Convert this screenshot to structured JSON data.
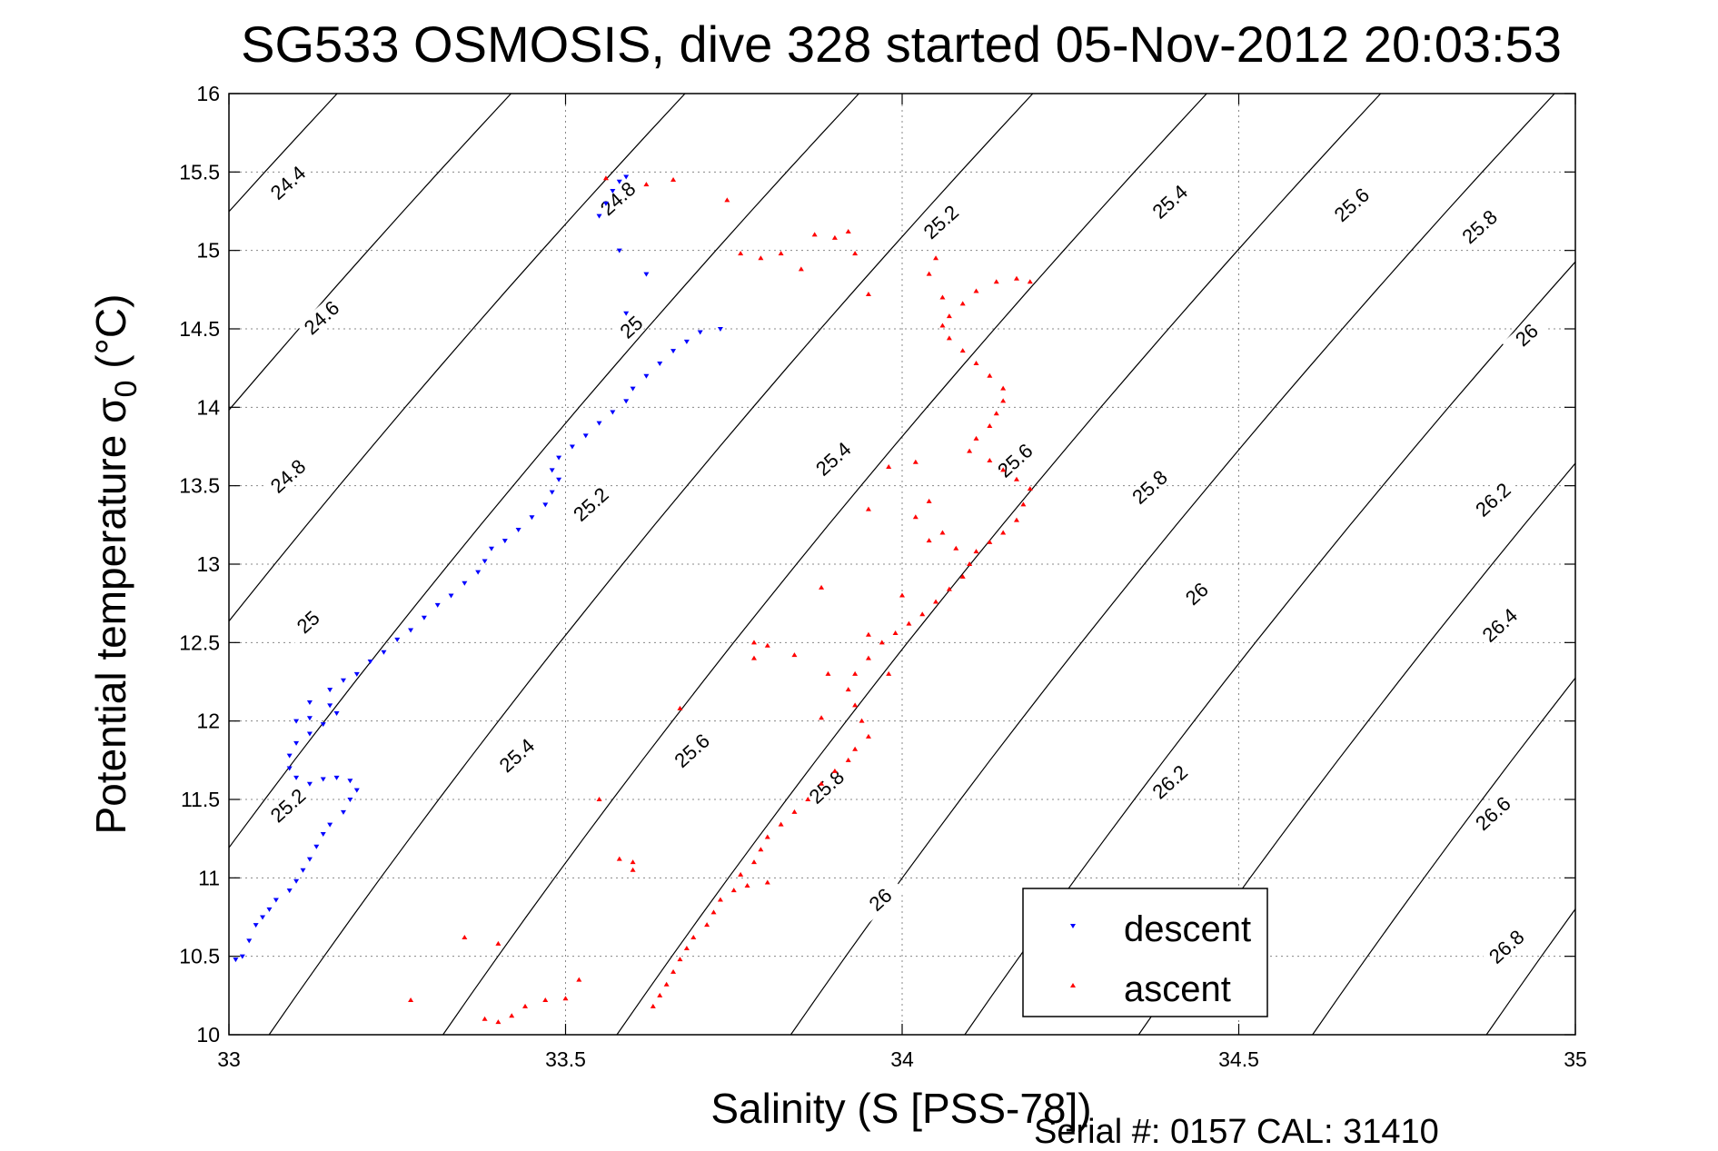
{
  "chart_data": {
    "type": "scatter",
    "title": "SG533 OSMOSIS, dive 328 started 05-Nov-2012 20:03:53",
    "xlabel": "Salinity (S [PSS-78])",
    "ylabel": "Potential temperature σ",
    "ylabel_subscript": "0",
    "ylabel_unit": " (°C)",
    "footer": "Serial #: 0157  CAL: 31410",
    "xlim": [
      33,
      35
    ],
    "ylim": [
      10,
      16
    ],
    "xticks": [
      33,
      33.5,
      34,
      34.5,
      35
    ],
    "xtick_labels": [
      "33",
      "33.5",
      "34",
      "34.5",
      "35"
    ],
    "yticks": [
      10,
      10.5,
      11,
      11.5,
      12,
      12.5,
      13,
      13.5,
      14,
      14.5,
      15,
      15.5,
      16
    ],
    "ytick_labels": [
      "10",
      "10.5",
      "11",
      "11.5",
      "12",
      "12.5",
      "13",
      "13.5",
      "14",
      "14.5",
      "15",
      "15.5",
      "16"
    ],
    "grid": true,
    "legend_position": "bottom-right",
    "isopycnals": {
      "levels": [
        24.4,
        24.6,
        24.8,
        25,
        25.2,
        25.4,
        25.6,
        25.8,
        26,
        26.2,
        26.4,
        26.6,
        26.8
      ],
      "labels": [
        {
          "text": "24.4",
          "s": 33.09,
          "t": 15.42
        },
        {
          "text": "24.6",
          "s": 33.14,
          "t": 14.56
        },
        {
          "text": "24.8",
          "s": 33.09,
          "t": 13.55
        },
        {
          "text": "24.8",
          "s": 33.58,
          "t": 15.32
        },
        {
          "text": "25",
          "s": 33.6,
          "t": 14.5
        },
        {
          "text": "25",
          "s": 33.12,
          "t": 12.62
        },
        {
          "text": "25.2",
          "s": 34.06,
          "t": 15.17
        },
        {
          "text": "25.2",
          "s": 33.54,
          "t": 13.37
        },
        {
          "text": "25.2",
          "s": 33.09,
          "t": 11.45
        },
        {
          "text": "25.4",
          "s": 34.4,
          "t": 15.3
        },
        {
          "text": "25.4",
          "s": 33.9,
          "t": 13.66
        },
        {
          "text": "25.4",
          "s": 33.43,
          "t": 11.77
        },
        {
          "text": "25.6",
          "s": 34.67,
          "t": 15.28
        },
        {
          "text": "25.6",
          "s": 34.17,
          "t": 13.65
        },
        {
          "text": "25.6",
          "s": 33.69,
          "t": 11.8
        },
        {
          "text": "25.8",
          "s": 34.86,
          "t": 15.14
        },
        {
          "text": "25.8",
          "s": 34.37,
          "t": 13.48
        },
        {
          "text": "25.8",
          "s": 33.89,
          "t": 11.57
        },
        {
          "text": "26",
          "s": 34.93,
          "t": 14.45
        },
        {
          "text": "26",
          "s": 34.44,
          "t": 12.8
        },
        {
          "text": "26",
          "s": 33.97,
          "t": 10.85
        },
        {
          "text": "26.2",
          "s": 34.88,
          "t": 13.4
        },
        {
          "text": "26.2",
          "s": 34.4,
          "t": 11.6
        },
        {
          "text": "26.4",
          "s": 34.89,
          "t": 12.6
        },
        {
          "text": "26.6",
          "s": 34.88,
          "t": 11.4
        },
        {
          "text": "26.8",
          "s": 34.9,
          "t": 10.55
        }
      ]
    },
    "series": [
      {
        "name": "descent",
        "color": "#0000ff",
        "marker": "triangle-down",
        "points": [
          [
            33.01,
            10.48
          ],
          [
            33.02,
            10.5
          ],
          [
            33.03,
            10.6
          ],
          [
            33.04,
            10.7
          ],
          [
            33.05,
            10.75
          ],
          [
            33.06,
            10.8
          ],
          [
            33.07,
            10.86
          ],
          [
            33.09,
            10.92
          ],
          [
            33.1,
            10.98
          ],
          [
            33.11,
            11.05
          ],
          [
            33.12,
            11.12
          ],
          [
            33.13,
            11.2
          ],
          [
            33.14,
            11.28
          ],
          [
            33.15,
            11.34
          ],
          [
            33.17,
            11.42
          ],
          [
            33.18,
            11.5
          ],
          [
            33.19,
            11.56
          ],
          [
            33.18,
            11.62
          ],
          [
            33.16,
            11.64
          ],
          [
            33.14,
            11.63
          ],
          [
            33.12,
            11.6
          ],
          [
            33.1,
            11.64
          ],
          [
            33.09,
            11.7
          ],
          [
            33.09,
            11.78
          ],
          [
            33.1,
            11.86
          ],
          [
            33.12,
            11.92
          ],
          [
            33.14,
            11.98
          ],
          [
            33.16,
            12.05
          ],
          [
            33.15,
            12.1
          ],
          [
            33.12,
            12.02
          ],
          [
            33.1,
            12.0
          ],
          [
            33.12,
            12.12
          ],
          [
            33.15,
            12.2
          ],
          [
            33.17,
            12.26
          ],
          [
            33.19,
            12.3
          ],
          [
            33.21,
            12.38
          ],
          [
            33.23,
            12.44
          ],
          [
            33.25,
            12.52
          ],
          [
            33.27,
            12.58
          ],
          [
            33.29,
            12.66
          ],
          [
            33.31,
            12.74
          ],
          [
            33.33,
            12.8
          ],
          [
            33.35,
            12.88
          ],
          [
            33.37,
            12.95
          ],
          [
            33.38,
            13.02
          ],
          [
            33.39,
            13.1
          ],
          [
            33.41,
            13.15
          ],
          [
            33.43,
            13.22
          ],
          [
            33.45,
            13.3
          ],
          [
            33.47,
            13.38
          ],
          [
            33.48,
            13.46
          ],
          [
            33.49,
            13.54
          ],
          [
            33.48,
            13.6
          ],
          [
            33.49,
            13.68
          ],
          [
            33.51,
            13.75
          ],
          [
            33.53,
            13.82
          ],
          [
            33.55,
            13.9
          ],
          [
            33.57,
            13.97
          ],
          [
            33.59,
            14.04
          ],
          [
            33.6,
            14.12
          ],
          [
            33.62,
            14.2
          ],
          [
            33.64,
            14.28
          ],
          [
            33.66,
            14.36
          ],
          [
            33.68,
            14.42
          ],
          [
            33.7,
            14.48
          ],
          [
            33.73,
            14.5
          ],
          [
            33.55,
            15.22
          ],
          [
            33.56,
            15.3
          ],
          [
            33.57,
            15.38
          ],
          [
            33.58,
            15.44
          ],
          [
            33.59,
            15.47
          ],
          [
            33.58,
            15.0
          ],
          [
            33.62,
            14.85
          ],
          [
            33.59,
            14.6
          ]
        ]
      },
      {
        "name": "ascent",
        "color": "#ff0000",
        "marker": "triangle-up",
        "points": [
          [
            33.38,
            10.1
          ],
          [
            33.4,
            10.08
          ],
          [
            33.42,
            10.12
          ],
          [
            33.44,
            10.18
          ],
          [
            33.47,
            10.22
          ],
          [
            33.5,
            10.23
          ],
          [
            33.52,
            10.35
          ],
          [
            33.27,
            10.22
          ],
          [
            33.35,
            10.62
          ],
          [
            33.4,
            10.58
          ],
          [
            33.63,
            10.18
          ],
          [
            33.64,
            10.25
          ],
          [
            33.65,
            10.32
          ],
          [
            33.66,
            10.4
          ],
          [
            33.67,
            10.48
          ],
          [
            33.68,
            10.55
          ],
          [
            33.69,
            10.62
          ],
          [
            33.71,
            10.7
          ],
          [
            33.72,
            10.78
          ],
          [
            33.73,
            10.86
          ],
          [
            33.75,
            10.92
          ],
          [
            33.77,
            10.95
          ],
          [
            33.8,
            10.97
          ],
          [
            33.76,
            11.02
          ],
          [
            33.78,
            11.1
          ],
          [
            33.79,
            11.18
          ],
          [
            33.8,
            11.26
          ],
          [
            33.82,
            11.34
          ],
          [
            33.84,
            11.42
          ],
          [
            33.86,
            11.5
          ],
          [
            33.88,
            11.6
          ],
          [
            33.9,
            11.68
          ],
          [
            33.92,
            11.75
          ],
          [
            33.93,
            11.82
          ],
          [
            33.95,
            11.9
          ],
          [
            33.94,
            12.0
          ],
          [
            33.93,
            12.1
          ],
          [
            33.92,
            12.2
          ],
          [
            33.93,
            12.3
          ],
          [
            33.95,
            12.4
          ],
          [
            33.97,
            12.5
          ],
          [
            33.99,
            12.56
          ],
          [
            34.01,
            12.62
          ],
          [
            34.03,
            12.68
          ],
          [
            34.05,
            12.76
          ],
          [
            34.07,
            12.84
          ],
          [
            34.09,
            12.92
          ],
          [
            34.1,
            13.0
          ],
          [
            34.11,
            13.08
          ],
          [
            34.13,
            13.14
          ],
          [
            34.15,
            13.2
          ],
          [
            34.17,
            13.28
          ],
          [
            34.18,
            13.38
          ],
          [
            34.19,
            13.48
          ],
          [
            34.17,
            13.54
          ],
          [
            34.15,
            13.6
          ],
          [
            34.13,
            13.66
          ],
          [
            34.1,
            13.72
          ],
          [
            34.11,
            13.8
          ],
          [
            34.13,
            13.88
          ],
          [
            34.14,
            13.96
          ],
          [
            34.15,
            14.04
          ],
          [
            34.15,
            14.12
          ],
          [
            34.13,
            14.2
          ],
          [
            34.11,
            14.28
          ],
          [
            34.09,
            14.36
          ],
          [
            34.07,
            14.44
          ],
          [
            34.06,
            14.52
          ],
          [
            34.07,
            14.58
          ],
          [
            34.09,
            14.66
          ],
          [
            34.11,
            14.74
          ],
          [
            34.14,
            14.8
          ],
          [
            34.17,
            14.82
          ],
          [
            34.19,
            14.8
          ],
          [
            34.05,
            14.95
          ],
          [
            34.04,
            14.85
          ],
          [
            34.06,
            14.7
          ],
          [
            33.82,
            14.98
          ],
          [
            33.79,
            14.95
          ],
          [
            33.76,
            14.98
          ],
          [
            33.85,
            14.88
          ],
          [
            33.87,
            15.1
          ],
          [
            33.9,
            15.08
          ],
          [
            33.92,
            15.12
          ],
          [
            33.95,
            14.72
          ],
          [
            33.93,
            14.98
          ],
          [
            33.56,
            15.46
          ],
          [
            33.62,
            15.42
          ],
          [
            33.74,
            15.32
          ],
          [
            33.66,
            15.45
          ],
          [
            34.02,
            13.65
          ],
          [
            33.98,
            13.62
          ],
          [
            34.06,
            13.2
          ],
          [
            34.04,
            13.15
          ],
          [
            34.08,
            13.1
          ],
          [
            33.95,
            13.35
          ],
          [
            34.02,
            13.3
          ],
          [
            34.04,
            13.4
          ],
          [
            33.6,
            11.1
          ],
          [
            33.55,
            11.5
          ],
          [
            33.67,
            12.08
          ],
          [
            33.78,
            12.4
          ],
          [
            33.8,
            12.48
          ],
          [
            33.84,
            12.42
          ],
          [
            33.89,
            12.3
          ],
          [
            33.88,
            12.02
          ],
          [
            33.98,
            12.3
          ],
          [
            33.6,
            11.05
          ],
          [
            33.58,
            11.12
          ],
          [
            33.95,
            12.55
          ],
          [
            34.0,
            12.8
          ],
          [
            33.88,
            12.85
          ],
          [
            33.78,
            12.5
          ]
        ]
      }
    ]
  }
}
